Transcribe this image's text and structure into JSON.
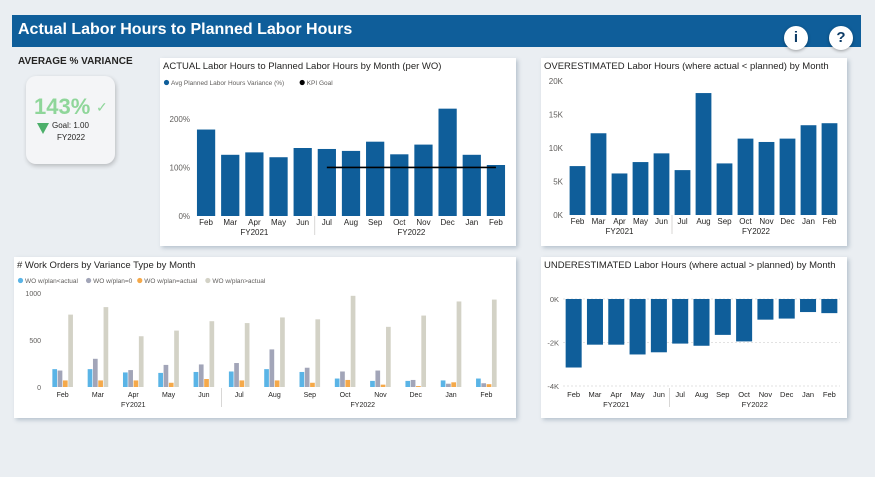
{
  "header": {
    "title": "Actual Labor Hours to Planned Labor Hours",
    "info_button": "i",
    "help_button": "?"
  },
  "colors": {
    "header": "#0f5e9a",
    "bar": "#0f5e9a",
    "kpi_line": "#000000",
    "kpi_good": "#8fd69a",
    "kpi_arrow": "#4caf6a",
    "series": [
      "#5ab4e6",
      "#a2a5b8",
      "#f5a94a",
      "#d3d2c6"
    ]
  },
  "kpi": {
    "heading": "AVERAGE % VARIANCE",
    "value": "143%",
    "goal": "Goal: 1.00",
    "period": "FY2022",
    "indicator_icon": "check-icon",
    "trend_icon": "triangle-down-icon"
  },
  "chart_data": [
    {
      "id": "actual",
      "type": "bar",
      "title": "ACTUAL Labor Hours to Planned Labor Hours by Month (per WO)",
      "categories": [
        "Feb",
        "Mar",
        "Apr",
        "May",
        "Jun",
        "Jul",
        "Aug",
        "Sep",
        "Oct",
        "Nov",
        "Dec",
        "Jan",
        "Feb"
      ],
      "groups": [
        {
          "label": "FY2021",
          "start": 0,
          "end": 4
        },
        {
          "label": "FY2022",
          "start": 5,
          "end": 12
        }
      ],
      "series": [
        {
          "name": "Avg Planned Labor Hours Variance (%)",
          "values": [
            178,
            126,
            131,
            121,
            140,
            138,
            134,
            153,
            127,
            147,
            221,
            126,
            105
          ]
        }
      ],
      "kpi_line": {
        "name": "KPI Goal",
        "value": 100,
        "start": 5,
        "end": 12
      },
      "yticks": [
        {
          "v": 0,
          "label": "0%"
        },
        {
          "v": 100,
          "label": "100%"
        },
        {
          "v": 200,
          "label": "200%"
        }
      ],
      "ylim": [
        0,
        245
      ],
      "legend_position": "top-left"
    },
    {
      "id": "over",
      "type": "bar",
      "title": "OVERESTIMATED Labor Hours (where actual < planned) by Month",
      "categories": [
        "Feb",
        "Mar",
        "Apr",
        "May",
        "Jun",
        "Jul",
        "Aug",
        "Sep",
        "Oct",
        "Nov",
        "Dec",
        "Jan",
        "Feb"
      ],
      "groups": [
        {
          "label": "FY2021",
          "start": 0,
          "end": 4
        },
        {
          "label": "FY2022",
          "start": 5,
          "end": 12
        }
      ],
      "series": [
        {
          "values": [
            7300,
            12200,
            6200,
            7900,
            9200,
            6700,
            18200,
            7700,
            11400,
            10900,
            11400,
            13400,
            13700
          ]
        }
      ],
      "yticks": [
        {
          "v": 0,
          "label": "0K"
        },
        {
          "v": 5000,
          "label": "5K"
        },
        {
          "v": 10000,
          "label": "10K"
        },
        {
          "v": 15000,
          "label": "15K"
        },
        {
          "v": 20000,
          "label": "20K"
        }
      ],
      "ylim": [
        0,
        20000
      ]
    },
    {
      "id": "wo",
      "type": "bar",
      "title": "# Work Orders by Variance Type by Month",
      "categories": [
        "Feb",
        "Mar",
        "Apr",
        "May",
        "Jun",
        "Jul",
        "Aug",
        "Sep",
        "Oct",
        "Nov",
        "Dec",
        "Jan",
        "Feb"
      ],
      "groups": [
        {
          "label": "FY2021",
          "start": 0,
          "end": 4
        },
        {
          "label": "FY2022",
          "start": 5,
          "end": 12
        }
      ],
      "series": [
        {
          "name": "WO w/plan<actual",
          "values": [
            190,
            190,
            155,
            150,
            160,
            165,
            190,
            160,
            90,
            65,
            65,
            70,
            90
          ]
        },
        {
          "name": "WO w/plan=0",
          "values": [
            175,
            300,
            180,
            235,
            240,
            255,
            400,
            205,
            165,
            175,
            75,
            35,
            40
          ]
        },
        {
          "name": "WO w/plan=actual",
          "values": [
            70,
            70,
            70,
            45,
            85,
            70,
            70,
            45,
            75,
            25,
            10,
            50,
            30
          ]
        },
        {
          "name": "WO w/plan>actual",
          "values": [
            770,
            850,
            540,
            600,
            700,
            680,
            740,
            720,
            970,
            640,
            760,
            910,
            930
          ]
        }
      ],
      "yticks": [
        {
          "v": 0,
          "label": "0"
        },
        {
          "v": 500,
          "label": "500"
        },
        {
          "v": 1000,
          "label": "1000"
        }
      ],
      "ylim": [
        0,
        1000
      ],
      "legend_position": "top-left"
    },
    {
      "id": "under",
      "type": "bar",
      "title": "UNDERESTIMATED Labor Hours (where actual > planned) by Month",
      "categories": [
        "Feb",
        "Mar",
        "Apr",
        "May",
        "Jun",
        "Jul",
        "Aug",
        "Sep",
        "Oct",
        "Nov",
        "Dec",
        "Jan",
        "Feb"
      ],
      "groups": [
        {
          "label": "FY2021",
          "start": 0,
          "end": 4
        },
        {
          "label": "FY2022",
          "start": 5,
          "end": 12
        }
      ],
      "series": [
        {
          "values": [
            -3150,
            -2100,
            -2100,
            -2550,
            -2450,
            -2050,
            -2150,
            -1650,
            -1950,
            -950,
            -900,
            -600,
            -650
          ]
        }
      ],
      "yticks": [
        {
          "v": 0,
          "label": "0K"
        },
        {
          "v": -2000,
          "label": "-2K"
        },
        {
          "v": -4000,
          "label": "-4K"
        }
      ],
      "ylim": [
        -4000,
        0
      ]
    }
  ]
}
